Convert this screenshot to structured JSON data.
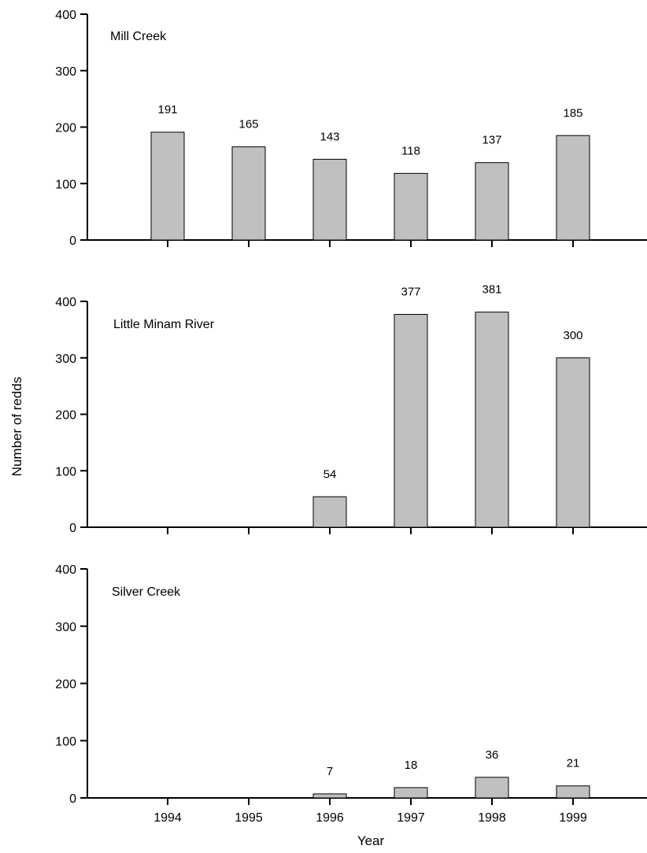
{
  "chart_data": {
    "type": "bar",
    "ylabel": "Number of redds",
    "xlabel": "Year",
    "ylim": [
      0,
      400
    ],
    "yticks": [
      0,
      100,
      200,
      300,
      400
    ],
    "categories": [
      "1994",
      "1995",
      "1996",
      "1997",
      "1998",
      "1999"
    ],
    "bar_color": "#c0c0c0",
    "panels": [
      {
        "title": "Mill Creek",
        "values": [
          191,
          165,
          143,
          118,
          137,
          185
        ]
      },
      {
        "title": "Little Minam River",
        "values": [
          null,
          null,
          54,
          377,
          381,
          300
        ]
      },
      {
        "title": "Silver Creek",
        "values": [
          null,
          null,
          7,
          18,
          36,
          21
        ]
      }
    ]
  }
}
